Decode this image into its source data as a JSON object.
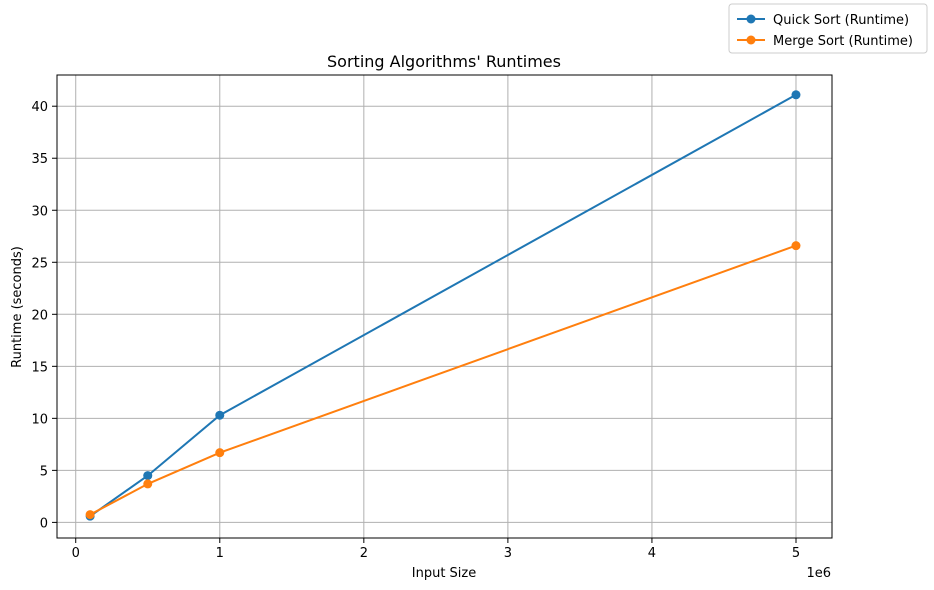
{
  "chart_data": {
    "type": "line",
    "title": "Sorting Algorithms' Runtimes",
    "xlabel": "Input Size",
    "ylabel": "Runtime (seconds)",
    "x_offset_label": "1e6",
    "xlim": [
      -130000,
      5250000
    ],
    "ylim": [
      -1.5,
      43.0
    ],
    "xticks": [
      0,
      1000000,
      2000000,
      3000000,
      4000000,
      5000000
    ],
    "xtick_labels": [
      "0",
      "1",
      "2",
      "3",
      "4",
      "5"
    ],
    "yticks": [
      0,
      5,
      10,
      15,
      20,
      25,
      30,
      35,
      40
    ],
    "ytick_labels": [
      "0",
      "5",
      "10",
      "15",
      "20",
      "25",
      "30",
      "35",
      "40"
    ],
    "grid": true,
    "legend_position": "top-right",
    "x": [
      100000,
      500000,
      1000000,
      5000000
    ],
    "series": [
      {
        "name": "Quick Sort (Runtime)",
        "color": "#1f77b4",
        "marker": "circle",
        "values": [
          0.6,
          4.5,
          10.3,
          41.1
        ]
      },
      {
        "name": "Merge Sort (Runtime)",
        "color": "#ff7f0e",
        "marker": "circle",
        "values": [
          0.75,
          3.7,
          6.7,
          26.6
        ]
      }
    ]
  }
}
